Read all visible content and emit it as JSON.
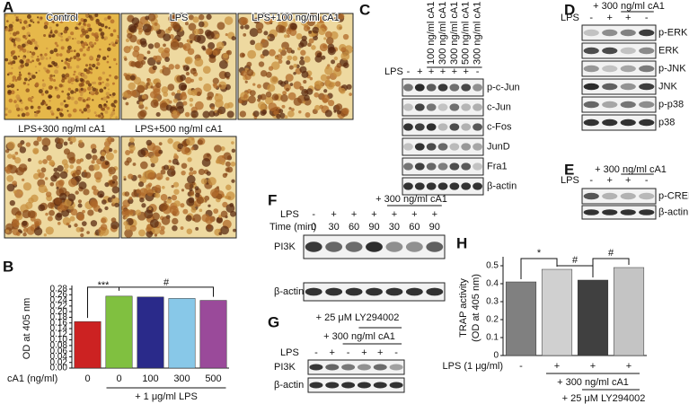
{
  "panel_labels": [
    "A",
    "B",
    "C",
    "D",
    "E",
    "F",
    "G",
    "H"
  ],
  "micrographs": [
    "Control",
    "LPS",
    "LPS+100 ng/ml cA1",
    "LPS+300 ng/ml cA1",
    "LPS+500 ng/ml cA1"
  ],
  "blot_c": {
    "treatments": [
      "100 ng/ml cA1",
      "300 ng/ml cA1",
      "300 ng/ml cA1",
      "500 ng/ml cA1",
      "300 ng/ml cA1"
    ],
    "lps_label": "LPS",
    "lps": [
      "-",
      "+",
      "+",
      "+",
      "+",
      "+",
      "-"
    ],
    "rows": [
      "p-c-Jun",
      "c-Jun",
      "c-Fos",
      "JunD",
      "Fra1",
      "β-actin"
    ]
  },
  "blot_d": {
    "header": "+ 300 ng/ml cA1",
    "lps_label": "LPS",
    "lps": [
      "-",
      "+",
      "+",
      "-"
    ],
    "rows": [
      "p-ERK",
      "ERK",
      "p-JNK",
      "JNK",
      "p-p38",
      "p38"
    ]
  },
  "blot_e": {
    "header": "+ 300 ng/ml cA1",
    "lps_label": "LPS",
    "lps": [
      "-",
      "+",
      "+",
      "-"
    ],
    "rows": [
      "p-CREB",
      "β-actin"
    ]
  },
  "blot_f": {
    "header": "+ 300 ng/ml cA1",
    "lps_label": "LPS",
    "lps": [
      "-",
      "+",
      "+",
      "+",
      "+",
      "+",
      "+"
    ],
    "time_label": "Time (min)",
    "time": [
      "0",
      "30",
      "60",
      "90",
      "30",
      "60",
      "90"
    ],
    "rows": [
      "PI3K",
      "β-actin"
    ]
  },
  "blot_g": {
    "headers": [
      "+ 25 μM LY294002",
      "+ 300 ng/ml cA1"
    ],
    "lps_label": "LPS",
    "lps": [
      "-",
      "+",
      "-",
      "+",
      "+",
      "-"
    ],
    "rows": [
      "PI3K",
      "β-actin"
    ]
  },
  "chart_data": [
    {
      "type": "bar",
      "ylabel": "OD at 405 nm",
      "x_label": "cA1 (ng/ml)",
      "categories": [
        "0",
        "0",
        "100",
        "300",
        "500"
      ],
      "values": [
        0.165,
        0.255,
        0.252,
        0.247,
        0.24
      ],
      "colors": [
        "#cc2222",
        "#80c040",
        "#2a2a8a",
        "#88c8e8",
        "#9a4a9a"
      ],
      "ylim": [
        0,
        0.28
      ],
      "yticks": [
        {
          "value": 0,
          "label": "0.00"
        },
        0.02,
        0.04,
        0.06,
        0.08,
        {
          "value": 0.1,
          "label": "0.10"
        },
        0.12,
        0.14,
        0.16,
        0.18,
        {
          "value": 0.2,
          "label": "0.20"
        },
        0.22,
        0.24,
        0.26,
        0.28
      ],
      "note": "+ 1 μg/ml LPS",
      "annotations": [
        "***",
        "#"
      ]
    },
    {
      "type": "bar",
      "ylabel": [
        "TRAP activity",
        "(OD at 405 nm)"
      ],
      "x_label": "LPS (1 μg/ml)",
      "categories": [
        "-",
        "+",
        "+",
        "+"
      ],
      "values": [
        0.41,
        0.48,
        0.42,
        0.49
      ],
      "colors": [
        "#808080",
        "#d0d0d0",
        "#404040",
        "#c4c4c4"
      ],
      "ylim": [
        0,
        0.53
      ],
      "yticks": [
        0,
        0.1,
        0.2,
        0.3,
        0.4,
        0.5
      ],
      "groups": [
        "+ 300 ng/ml cA1",
        "+ 25 μM LY294002"
      ],
      "annotations": [
        "*",
        "#",
        "#"
      ]
    }
  ]
}
